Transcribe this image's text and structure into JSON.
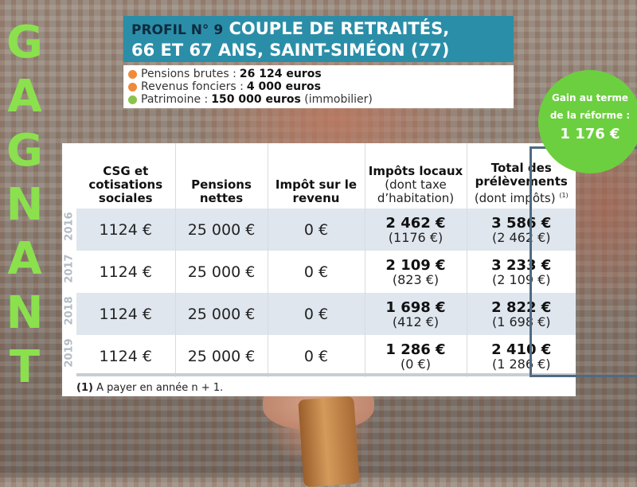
{
  "vertical_word": [
    "G",
    "A",
    "G",
    "N",
    "A",
    "N",
    "T"
  ],
  "title": {
    "prefix": "PROFIL N° 9",
    "line1": "COUPLE DE RETRAITÉS,",
    "line2": "66 ET 67 ANS, SAINT-SIMÉON (77)"
  },
  "info": [
    {
      "label": "Pensions brutes :",
      "value": "26 124 euros",
      "extra": "",
      "color": "#f08a3a"
    },
    {
      "label": "Revenus fonciers :",
      "value": "4 000 euros",
      "extra": "",
      "color": "#f08a3a"
    },
    {
      "label": "Patrimoine :",
      "value": "150 000 euros",
      "extra": " (immobilier)",
      "color": "#8bc34a"
    }
  ],
  "gain": {
    "label": "Gain au terme de la réforme :",
    "value": "1 176 €",
    "color": "#6ccf3f"
  },
  "table": {
    "headers": {
      "csg": "CSG et cotisations sociales",
      "pensions": "Pensions nettes",
      "impot_revenu": "Impôt sur le revenu",
      "impots_locaux": "Impôts locaux",
      "impots_locaux_sub": "(dont taxe d’habitation)",
      "total": "Total des prélèvements",
      "total_sub": "(dont impôts)",
      "total_note": "(1)"
    },
    "rows": [
      {
        "year": "2016",
        "csg": "1124 €",
        "pensions": "25 000 €",
        "ir": "0 €",
        "locaux": "2 462 €",
        "locaux_th": "(1176 €)",
        "total": "3 586 €",
        "total_impots": "(2 462 €)"
      },
      {
        "year": "2017",
        "csg": "1124 €",
        "pensions": "25 000 €",
        "ir": "0 €",
        "locaux": "2 109 €",
        "locaux_th": "(823 €)",
        "total": "3 233 €",
        "total_impots": "(2 109 €)"
      },
      {
        "year": "2018",
        "csg": "1124 €",
        "pensions": "25 000 €",
        "ir": "0 €",
        "locaux": "1 698 €",
        "locaux_th": "(412 €)",
        "total": "2 822 €",
        "total_impots": "(1 698 €)"
      },
      {
        "year": "2019",
        "csg": "1124 €",
        "pensions": "25 000 €",
        "ir": "0 €",
        "locaux": "1 286 €",
        "locaux_th": "(0 €)",
        "total": "2 410 €",
        "total_impots": "(1 286 €)"
      }
    ]
  },
  "footnote": {
    "marker": "(1)",
    "text": " A payer en année n + 1."
  }
}
